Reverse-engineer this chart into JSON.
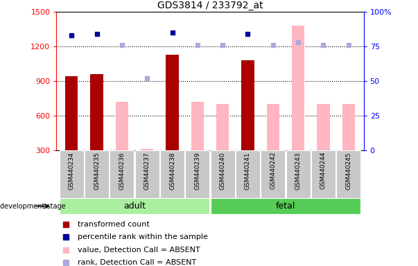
{
  "title": "GDS3814 / 233792_at",
  "samples": [
    "GSM440234",
    "GSM440235",
    "GSM440236",
    "GSM440237",
    "GSM440238",
    "GSM440239",
    "GSM440240",
    "GSM440241",
    "GSM440242",
    "GSM440243",
    "GSM440244",
    "GSM440245"
  ],
  "transformed_count": [
    940,
    960,
    null,
    null,
    1130,
    null,
    null,
    1080,
    null,
    null,
    null,
    null
  ],
  "percentile_rank": [
    83,
    84,
    null,
    null,
    85,
    null,
    null,
    84,
    null,
    null,
    null,
    null
  ],
  "value_absent": [
    null,
    null,
    720,
    310,
    null,
    720,
    700,
    null,
    700,
    1380,
    700,
    700
  ],
  "rank_absent_pct": [
    null,
    null,
    76,
    52,
    null,
    76,
    76,
    null,
    76,
    78,
    76,
    76
  ],
  "ylim_left": [
    300,
    1500
  ],
  "ylim_right": [
    0,
    100
  ],
  "yticks_left": [
    300,
    600,
    900,
    1200,
    1500
  ],
  "yticks_right": [
    0,
    25,
    50,
    75,
    100
  ],
  "ytick_labels_right": [
    "0",
    "25",
    "50",
    "75",
    "100%"
  ],
  "dark_red": "#AA0000",
  "pink": "#FFB6C1",
  "dark_blue": "#000099",
  "light_blue": "#AAAADD",
  "adult_color": "#AAEEA0",
  "fetal_color": "#55CC55",
  "sample_box_color": "#C8C8C8",
  "adult_indices": [
    0,
    1,
    2,
    3,
    4,
    5
  ],
  "fetal_indices": [
    6,
    7,
    8,
    9,
    10,
    11
  ],
  "legend_labels": [
    "transformed count",
    "percentile rank within the sample",
    "value, Detection Call = ABSENT",
    "rank, Detection Call = ABSENT"
  ],
  "legend_colors": [
    "#AA0000",
    "#000099",
    "#FFB6C1",
    "#AAAADD"
  ],
  "grid_dotted_at": [
    600,
    900,
    1200
  ],
  "bar_width": 0.5
}
